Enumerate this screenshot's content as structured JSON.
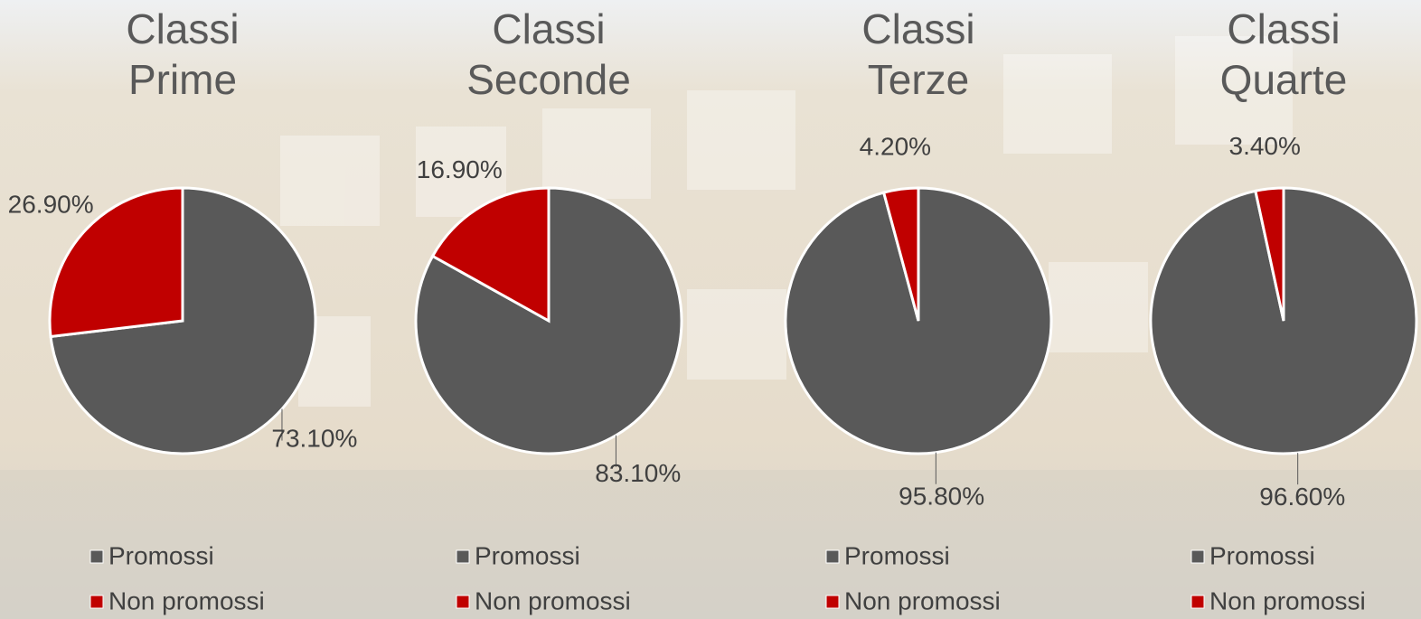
{
  "chart_data": [
    {
      "type": "pie",
      "title": "Classi Prime",
      "categories": [
        "Promossi",
        "Non promossi"
      ],
      "values": [
        73.1,
        26.9
      ],
      "value_labels": [
        "73.10%",
        "26.90%"
      ],
      "colors": [
        "#595959",
        "#c00000"
      ]
    },
    {
      "type": "pie",
      "title": "Classi Seconde",
      "categories": [
        "Promossi",
        "Non promossi"
      ],
      "values": [
        83.1,
        16.9
      ],
      "value_labels": [
        "83.10%",
        "16.90%"
      ],
      "colors": [
        "#595959",
        "#c00000"
      ]
    },
    {
      "type": "pie",
      "title": "Classi Terze",
      "categories": [
        "Promossi",
        "Non promossi"
      ],
      "values": [
        95.8,
        4.2
      ],
      "value_labels": [
        "95.80%",
        "4.20%"
      ],
      "colors": [
        "#595959",
        "#c00000"
      ]
    },
    {
      "type": "pie",
      "title": "Classi Quarte",
      "categories": [
        "Promossi",
        "Non promossi"
      ],
      "values": [
        96.6,
        3.4
      ],
      "value_labels": [
        "96.60%",
        "3.40%"
      ],
      "colors": [
        "#595959",
        "#c00000"
      ]
    }
  ]
}
